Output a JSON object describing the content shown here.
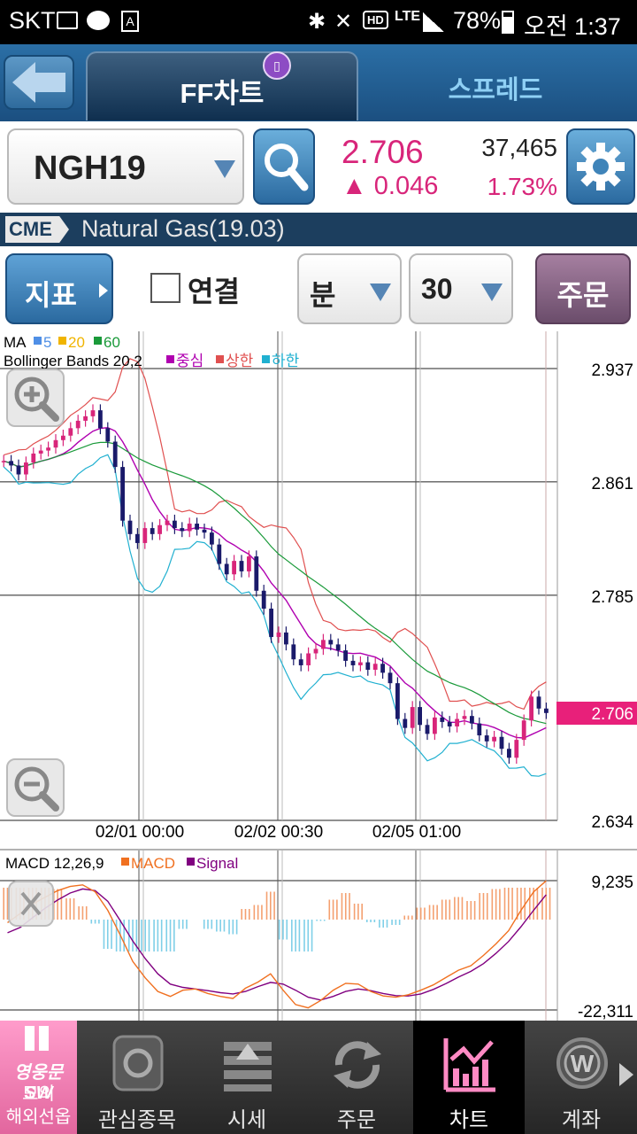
{
  "status_bar": {
    "carrier": "SKT",
    "network": "LTE",
    "battery": "78%",
    "time": "오전 1:37"
  },
  "tabs": {
    "active": "FF차트",
    "other": "스프레드"
  },
  "quote": {
    "symbol": "NGH19",
    "price": "2.706",
    "change": "▲ 0.046",
    "volume": "37,465",
    "change_pct": "1.73%"
  },
  "instrument": {
    "exchange": "CME",
    "name": "Natural Gas(19.03)"
  },
  "controls": {
    "indicator_label": "지표",
    "link_label": "연결",
    "period_unit": "분",
    "period_value": "30",
    "order_label": "주문"
  },
  "colors": {
    "up": "#d8257a",
    "ma5": "#4f8fe6",
    "ma20": "#f0b400",
    "ma60": "#1a9a3a",
    "bb_mid": "#b000b0",
    "bb_up": "#e05050",
    "bb_low": "#20b0d0",
    "macd": "#f07020",
    "signal": "#800080"
  },
  "chart_data": [
    {
      "type": "candlestick",
      "legend_ma": {
        "label": "MA",
        "periods": [
          "5",
          "20",
          "60"
        ]
      },
      "legend_bb": {
        "label": "Bollinger Bands 20,2",
        "mid": "중심",
        "up": "상한",
        "low": "하한"
      },
      "y_ticks": [
        "2.937",
        "2.861",
        "2.785",
        "2.634"
      ],
      "ylim": [
        2.634,
        2.937
      ],
      "x_ticks": [
        "02/01 00:00",
        "02/02 00:30",
        "02/05 01:00"
      ],
      "current_label": "2.706",
      "close_values": [
        2.875,
        2.872,
        2.866,
        2.874,
        2.88,
        2.882,
        2.884,
        2.889,
        2.892,
        2.897,
        2.902,
        2.905,
        2.909,
        2.897,
        2.888,
        2.871,
        2.835,
        2.826,
        2.82,
        2.83,
        2.826,
        2.832,
        2.835,
        2.83,
        2.828,
        2.833,
        2.829,
        2.827,
        2.819,
        2.806,
        2.799,
        2.808,
        2.801,
        2.811,
        2.788,
        2.776,
        2.757,
        2.76,
        2.752,
        2.742,
        2.738,
        2.746,
        2.749,
        2.755,
        2.752,
        2.748,
        2.741,
        2.738,
        2.74,
        2.735,
        2.739,
        2.733,
        2.726,
        2.702,
        2.696,
        2.71,
        2.698,
        2.692,
        2.703,
        2.7,
        2.697,
        2.702,
        2.704,
        2.699,
        2.691,
        2.687,
        2.69,
        2.682,
        2.676,
        2.688,
        2.701,
        2.717,
        2.709,
        2.706
      ]
    },
    {
      "type": "line",
      "title": "MACD 12,26,9",
      "series": [
        {
          "name": "MACD"
        },
        {
          "name": "Signal"
        }
      ],
      "y_ticks": [
        "9,235",
        "-22,311"
      ],
      "ylim": [
        -22311,
        9235
      ],
      "macd": [
        -1000,
        1200,
        3500,
        5200,
        6800,
        7800,
        8200,
        6500,
        2000,
        -4000,
        -10500,
        -14500,
        -17800,
        -19000,
        -17500,
        -17200,
        -18300,
        -19000,
        -19500,
        -17000,
        -15500,
        -13500,
        -17500,
        -21000,
        -21800,
        -20000,
        -17500,
        -15800,
        -16000,
        -17800,
        -18900,
        -19200,
        -18600,
        -17500,
        -16200,
        -14400,
        -12600,
        -11500,
        -9000,
        -6200,
        -3000,
        2000,
        6500,
        9200
      ],
      "signal": [
        -3500,
        -2200,
        200,
        2500,
        4500,
        6200,
        7200,
        6800,
        4200,
        -500,
        -5500,
        -9800,
        -13500,
        -16000,
        -16800,
        -17200,
        -17600,
        -18100,
        -18400,
        -17800,
        -16600,
        -15600,
        -16000,
        -17500,
        -19200,
        -19900,
        -19000,
        -17800,
        -17200,
        -17600,
        -18300,
        -18800,
        -18900,
        -18400,
        -17300,
        -15900,
        -14300,
        -12900,
        -11000,
        -8500,
        -5600,
        -2000,
        2000,
        5800
      ]
    }
  ],
  "bottom_nav": [
    {
      "label": "모의\n해외선옵",
      "badge": "영웅문SW"
    },
    {
      "label": "관심종목"
    },
    {
      "label": "시세"
    },
    {
      "label": "주문"
    },
    {
      "label": "차트"
    },
    {
      "label": "계좌"
    }
  ]
}
